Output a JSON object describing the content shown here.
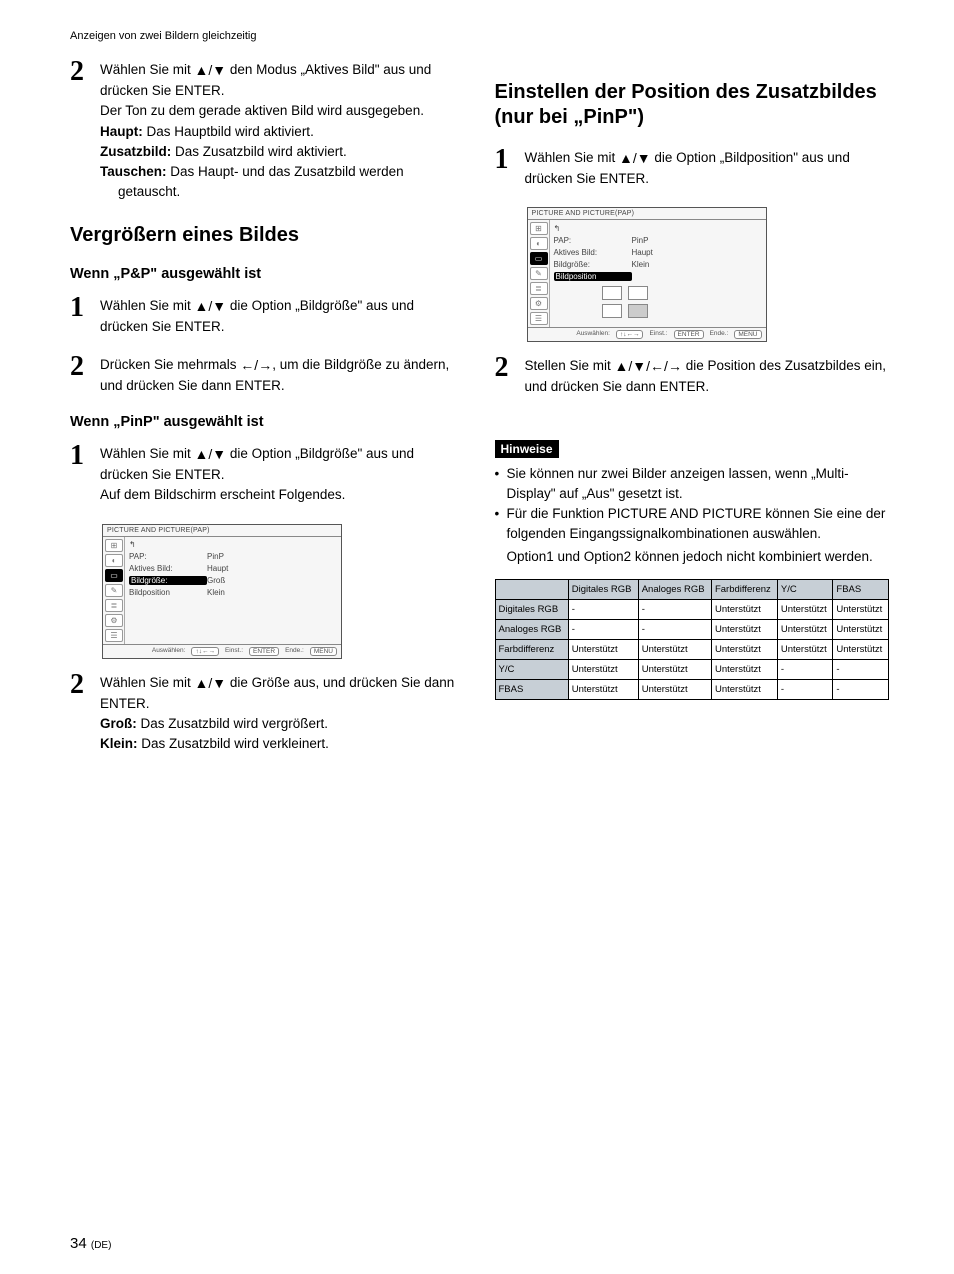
{
  "page_header": "Anzeigen von zwei Bildern gleichzeitig",
  "page_number_main": "34",
  "page_number_suffix": "(DE)",
  "glyphs": {
    "up": "▲",
    "down": "▼",
    "left": "←",
    "right": "→"
  },
  "left": {
    "step2": {
      "intro_a": "Wählen Sie mit ",
      "intro_b": " den Modus „Aktives Bild\" aus und drücken Sie ENTER.",
      "line2": "Der Ton zu dem gerade aktiven Bild wird ausgegeben.",
      "haupt_label": "Haupt:",
      "haupt_text": " Das Hauptbild wird aktiviert.",
      "zusatz_label": "Zusatzbild:",
      "zusatz_text": " Das Zusatzbild wird aktiviert.",
      "tauschen_label": "Tauschen:",
      "tauschen_text": " Das Haupt- und das Zusatzbild werden",
      "tauschen_text2": "getauscht."
    },
    "h2": "Vergrößern eines Bildes",
    "h3_pp": "Wenn „P&P\" ausgewählt ist",
    "pp_step1_a": "Wählen Sie mit ",
    "pp_step1_b": " die Option „Bildgröße\" aus und drücken Sie ENTER.",
    "pp_step2_a": "Drücken Sie mehrmals ",
    "pp_step2_b": ", um die Bildgröße zu ändern, und drücken Sie dann ENTER.",
    "h3_pinp": "Wenn „PinP\" ausgewählt ist",
    "pinp_step1_a": "Wählen Sie mit ",
    "pinp_step1_b": " die Option „Bildgröße\" aus und drücken Sie ENTER.",
    "pinp_step1_c": "Auf dem Bildschirm erscheint Folgendes.",
    "fig1": {
      "title": "PICTURE AND PICTURE(PAP)",
      "rows": [
        {
          "k": "↰",
          "v": ""
        },
        {
          "k": "PAP:",
          "v": "PinP"
        },
        {
          "k": "Aktives Bild:",
          "v": "Haupt"
        },
        {
          "k": "Bildgröße:",
          "v": "Groß",
          "sel": true
        },
        {
          "k": "Bildposition",
          "v": "Klein"
        }
      ],
      "footer_a": "Auswählen:",
      "footer_b": "Einst.:",
      "footer_b_btn": "ENTER",
      "footer_c": "Ende.:",
      "footer_c_btn": "MENU"
    },
    "pinp_step2_a": "Wählen Sie mit ",
    "pinp_step2_b": " die Größe aus, und drücken Sie dann ENTER.",
    "gross_label": "Groß:",
    "gross_text": " Das Zusatzbild wird vergrößert.",
    "klein_label": "Klein:",
    "klein_text": " Das Zusatzbild wird verkleinert."
  },
  "right": {
    "h2": "Einstellen der Position des Zusatzbildes (nur bei „PinP\")",
    "step1_a": "Wählen Sie mit ",
    "step1_b": " die Option „Bildposition\" aus und drücken Sie ENTER.",
    "fig2": {
      "title": "PICTURE AND PICTURE(PAP)",
      "rows": [
        {
          "k": "↰",
          "v": ""
        },
        {
          "k": "PAP:",
          "v": "PinP"
        },
        {
          "k": "Aktives Bild:",
          "v": "Haupt"
        },
        {
          "k": "Bildgröße:",
          "v": "Klein"
        },
        {
          "k": "Bildposition",
          "v": "",
          "sel": true
        }
      ],
      "footer_a": "Auswählen:",
      "footer_b": "Einst.:",
      "footer_b_btn": "ENTER",
      "footer_c": "Ende.:",
      "footer_c_btn": "MENU"
    },
    "step2_a": "Stellen Sie mit ",
    "step2_b": " die Position des Zusatzbildes ein, und drücken Sie dann ENTER.",
    "hinweise_label": "Hinweise",
    "bullet1": "Sie können nur zwei Bilder anzeigen lassen, wenn „Multi-Display\" auf „Aus\" gesetzt ist.",
    "bullet2": "Für die Funktion PICTURE AND PICTURE können Sie eine der folgenden Eingangssignalkombinationen auswählen.",
    "bullet2_add": "Option1 und Option2 können jedoch nicht kombiniert werden.",
    "table": {
      "cols": [
        "",
        "Digitales RGB",
        "Analoges RGB",
        "Farbdifferenz",
        "Y/C",
        "FBAS"
      ],
      "rows": [
        [
          "Digitales RGB",
          "-",
          "-",
          "Unterstützt",
          "Unterstützt",
          "Unterstützt"
        ],
        [
          "Analoges RGB",
          "-",
          "-",
          "Unterstützt",
          "Unterstützt",
          "Unterstützt"
        ],
        [
          "Farbdifferenz",
          "Unterstützt",
          "Unterstützt",
          "Unterstützt",
          "Unterstützt",
          "Unterstützt"
        ],
        [
          "Y/C",
          "Unterstützt",
          "Unterstützt",
          "Unterstützt",
          "-",
          "-"
        ],
        [
          "FBAS",
          "Unterstützt",
          "Unterstützt",
          "Unterstützt",
          "-",
          "-"
        ]
      ]
    }
  }
}
